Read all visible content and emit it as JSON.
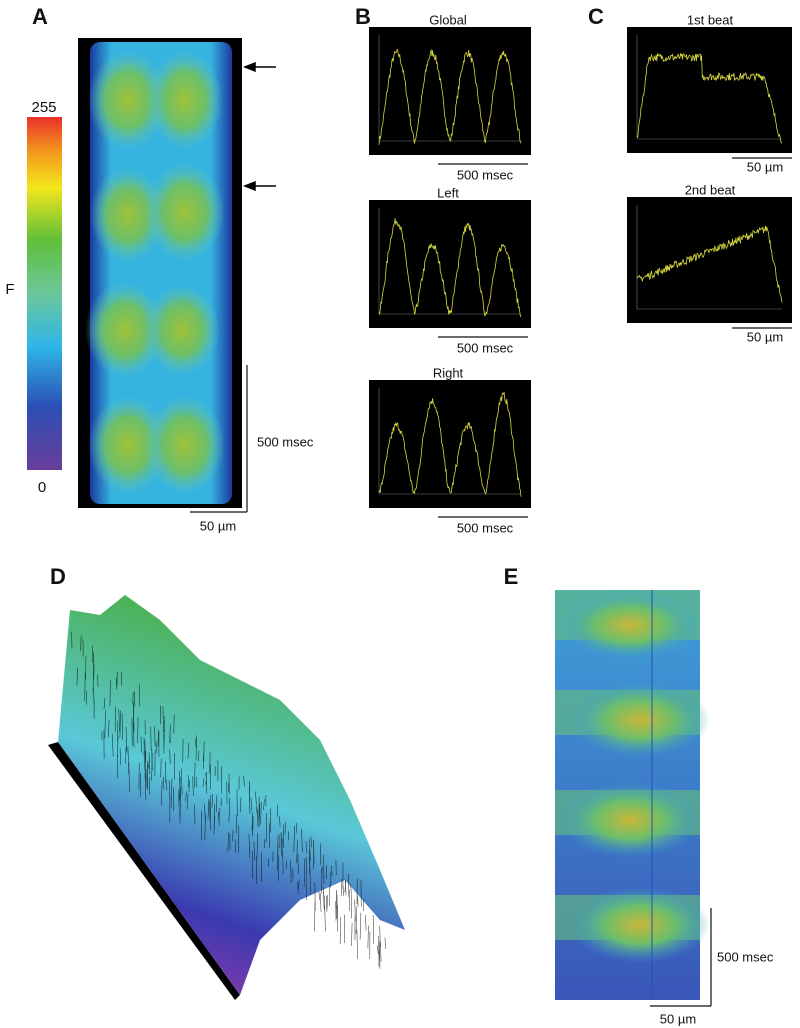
{
  "panels": {
    "A": {
      "label": "A",
      "colorbar": {
        "max": "255",
        "min": "0",
        "axis_label": "F"
      },
      "time_scale": "500 msec",
      "space_scale": "50 µm"
    },
    "B": {
      "label": "B",
      "traces": [
        {
          "title": "Global",
          "scale": "500 msec"
        },
        {
          "title": "Left",
          "scale": "500 msec"
        },
        {
          "title": "Right",
          "scale": "500 msec"
        }
      ]
    },
    "C": {
      "label": "C",
      "traces": [
        {
          "title": "1st beat",
          "scale": "50 µm"
        },
        {
          "title": "2nd beat",
          "scale": "50 µm"
        }
      ]
    },
    "D": {
      "label": "D"
    },
    "E": {
      "label": "E",
      "time_scale": "500 msec",
      "space_scale": "50 µm"
    }
  }
}
